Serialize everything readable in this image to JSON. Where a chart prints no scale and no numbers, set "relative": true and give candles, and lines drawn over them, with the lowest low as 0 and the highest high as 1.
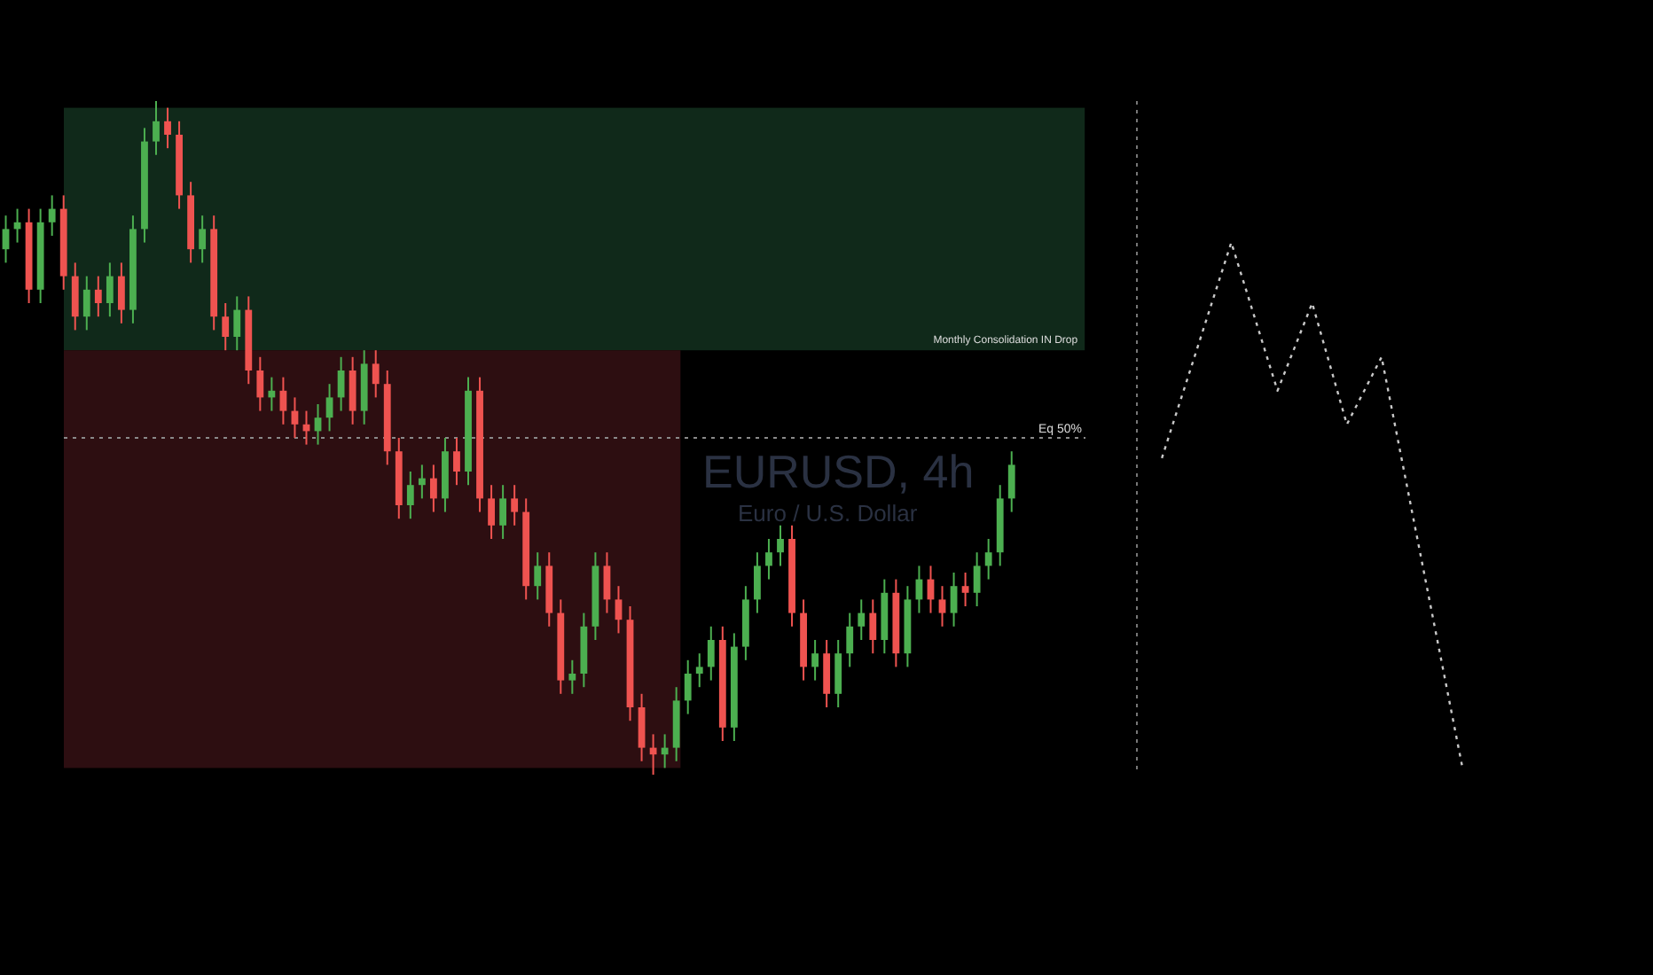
{
  "chart_data": {
    "type": "candlestick",
    "title": "EURUSD, 4h",
    "subtitle": "Euro / U.S. Dollar",
    "relative": true,
    "categories": [
      null,
      null,
      null,
      null,
      null,
      null,
      null,
      null,
      null,
      null,
      null,
      null,
      null,
      null,
      null,
      null,
      null,
      null,
      null,
      null,
      null,
      null,
      null,
      null,
      null,
      null,
      null,
      null,
      null,
      null,
      null,
      null,
      null,
      null,
      null,
      null,
      null,
      null,
      null,
      null,
      null,
      null,
      null,
      null,
      null,
      null,
      null,
      null,
      null,
      null,
      null,
      null,
      null,
      null,
      null,
      null,
      null,
      null,
      null,
      null,
      null,
      null,
      null,
      null,
      null,
      null,
      null,
      null,
      null,
      null,
      null,
      null,
      null,
      null,
      null,
      null,
      null,
      null,
      null,
      null,
      null,
      null,
      null,
      null,
      null,
      null,
      null,
      null,
      null,
      null,
      null,
      null,
      null,
      null,
      null,
      null,
      null,
      null,
      null,
      null,
      null,
      null,
      null,
      null,
      null,
      null,
      null,
      null,
      null,
      null,
      null,
      null,
      null,
      null,
      null,
      null,
      null,
      null,
      null,
      null,
      null,
      null,
      null,
      null,
      null,
      null,
      null,
      null,
      null,
      null,
      null,
      null,
      null,
      null,
      null
    ],
    "ohlc": [
      [
        0.78,
        0.83,
        0.76,
        0.81
      ],
      [
        0.81,
        0.84,
        0.79,
        0.82
      ],
      [
        0.82,
        0.84,
        0.7,
        0.72
      ],
      [
        0.72,
        0.84,
        0.7,
        0.82
      ],
      [
        0.82,
        0.86,
        0.8,
        0.84
      ],
      [
        0.84,
        0.86,
        0.72,
        0.74
      ],
      [
        0.74,
        0.76,
        0.66,
        0.68
      ],
      [
        0.68,
        0.74,
        0.66,
        0.72
      ],
      [
        0.72,
        0.74,
        0.68,
        0.7
      ],
      [
        0.7,
        0.76,
        0.68,
        0.74
      ],
      [
        0.74,
        0.76,
        0.67,
        0.69
      ],
      [
        0.69,
        0.83,
        0.67,
        0.81
      ],
      [
        0.81,
        0.96,
        0.79,
        0.94
      ],
      [
        0.94,
        1.0,
        0.92,
        0.97
      ],
      [
        0.97,
        0.99,
        0.93,
        0.95
      ],
      [
        0.95,
        0.97,
        0.84,
        0.86
      ],
      [
        0.86,
        0.88,
        0.76,
        0.78
      ],
      [
        0.78,
        0.83,
        0.76,
        0.81
      ],
      [
        0.81,
        0.83,
        0.66,
        0.68
      ],
      [
        0.68,
        0.7,
        0.63,
        0.65
      ],
      [
        0.65,
        0.71,
        0.63,
        0.69
      ],
      [
        0.69,
        0.71,
        0.58,
        0.6
      ],
      [
        0.6,
        0.62,
        0.54,
        0.56
      ],
      [
        0.56,
        0.59,
        0.54,
        0.57
      ],
      [
        0.57,
        0.59,
        0.52,
        0.54
      ],
      [
        0.54,
        0.56,
        0.5,
        0.52
      ],
      [
        0.52,
        0.54,
        0.49,
        0.51
      ],
      [
        0.51,
        0.55,
        0.49,
        0.53
      ],
      [
        0.53,
        0.58,
        0.51,
        0.56
      ],
      [
        0.56,
        0.62,
        0.54,
        0.6
      ],
      [
        0.6,
        0.62,
        0.52,
        0.54
      ],
      [
        0.54,
        0.63,
        0.52,
        0.61
      ],
      [
        0.61,
        0.63,
        0.56,
        0.58
      ],
      [
        0.58,
        0.6,
        0.46,
        0.48
      ],
      [
        0.48,
        0.5,
        0.38,
        0.4
      ],
      [
        0.4,
        0.45,
        0.38,
        0.43
      ],
      [
        0.43,
        0.46,
        0.41,
        0.44
      ],
      [
        0.44,
        0.46,
        0.39,
        0.41
      ],
      [
        0.41,
        0.5,
        0.39,
        0.48
      ],
      [
        0.48,
        0.5,
        0.43,
        0.45
      ],
      [
        0.45,
        0.59,
        0.43,
        0.57
      ],
      [
        0.57,
        0.59,
        0.39,
        0.41
      ],
      [
        0.41,
        0.43,
        0.35,
        0.37
      ],
      [
        0.37,
        0.43,
        0.35,
        0.41
      ],
      [
        0.41,
        0.43,
        0.37,
        0.39
      ],
      [
        0.39,
        0.41,
        0.26,
        0.28
      ],
      [
        0.28,
        0.33,
        0.26,
        0.31
      ],
      [
        0.31,
        0.33,
        0.22,
        0.24
      ],
      [
        0.24,
        0.26,
        0.12,
        0.14
      ],
      [
        0.14,
        0.17,
        0.12,
        0.15
      ],
      [
        0.15,
        0.24,
        0.13,
        0.22
      ],
      [
        0.22,
        0.33,
        0.2,
        0.31
      ],
      [
        0.31,
        0.33,
        0.24,
        0.26
      ],
      [
        0.26,
        0.28,
        0.21,
        0.23
      ],
      [
        0.23,
        0.25,
        0.08,
        0.1
      ],
      [
        0.1,
        0.12,
        0.02,
        0.04
      ],
      [
        0.04,
        0.06,
        0.0,
        0.03
      ],
      [
        0.03,
        0.06,
        0.01,
        0.04
      ],
      [
        0.04,
        0.13,
        0.02,
        0.11
      ],
      [
        0.11,
        0.17,
        0.09,
        0.15
      ],
      [
        0.15,
        0.18,
        0.13,
        0.16
      ],
      [
        0.16,
        0.22,
        0.14,
        0.2
      ],
      [
        0.2,
        0.22,
        0.05,
        0.07
      ],
      [
        0.07,
        0.21,
        0.05,
        0.19
      ],
      [
        0.19,
        0.28,
        0.17,
        0.26
      ],
      [
        0.26,
        0.33,
        0.24,
        0.31
      ],
      [
        0.31,
        0.35,
        0.29,
        0.33
      ],
      [
        0.33,
        0.37,
        0.31,
        0.35
      ],
      [
        0.35,
        0.37,
        0.22,
        0.24
      ],
      [
        0.24,
        0.26,
        0.14,
        0.16
      ],
      [
        0.16,
        0.2,
        0.14,
        0.18
      ],
      [
        0.18,
        0.2,
        0.1,
        0.12
      ],
      [
        0.12,
        0.2,
        0.1,
        0.18
      ],
      [
        0.18,
        0.24,
        0.16,
        0.22
      ],
      [
        0.22,
        0.26,
        0.2,
        0.24
      ],
      [
        0.24,
        0.26,
        0.18,
        0.2
      ],
      [
        0.2,
        0.29,
        0.18,
        0.27
      ],
      [
        0.27,
        0.29,
        0.16,
        0.18
      ],
      [
        0.18,
        0.28,
        0.16,
        0.26
      ],
      [
        0.26,
        0.31,
        0.24,
        0.29
      ],
      [
        0.29,
        0.31,
        0.24,
        0.26
      ],
      [
        0.26,
        0.28,
        0.22,
        0.24
      ],
      [
        0.24,
        0.3,
        0.22,
        0.28
      ],
      [
        0.28,
        0.3,
        0.25,
        0.27
      ],
      [
        0.27,
        0.33,
        0.25,
        0.31
      ],
      [
        0.31,
        0.35,
        0.29,
        0.33
      ],
      [
        0.33,
        0.43,
        0.31,
        0.41
      ],
      [
        0.41,
        0.48,
        0.39,
        0.46
      ],
      null,
      null,
      null,
      null,
      null,
      null,
      null,
      null,
      null,
      null,
      null,
      null,
      null,
      null,
      null,
      null,
      null,
      null,
      null,
      null,
      null,
      null,
      null,
      null,
      null,
      null,
      null,
      null,
      null,
      null,
      null,
      null,
      null,
      null,
      null,
      null,
      null,
      null,
      null,
      null,
      null,
      null,
      null,
      null,
      null,
      null,
      null
    ],
    "series": [
      {
        "type": "line",
        "color": "#c8c8c8",
        "line_style": "dotted",
        "values": [
          null,
          null,
          null,
          null,
          null,
          null,
          null,
          null,
          null,
          null,
          null,
          null,
          null,
          null,
          null,
          null,
          null,
          null,
          null,
          null,
          null,
          null,
          null,
          null,
          null,
          null,
          null,
          null,
          null,
          null,
          null,
          null,
          null,
          null,
          null,
          null,
          null,
          null,
          null,
          null,
          null,
          null,
          null,
          null,
          null,
          null,
          null,
          null,
          null,
          null,
          null,
          null,
          null,
          null,
          null,
          null,
          null,
          null,
          null,
          null,
          null,
          null,
          null,
          null,
          null,
          null,
          null,
          null,
          null,
          null,
          null,
          null,
          null,
          null,
          null,
          null,
          null,
          null,
          null,
          null,
          null,
          null,
          null,
          null,
          null,
          null,
          null,
          null,
          null,
          null,
          null,
          null,
          null,
          null,
          null,
          null,
          null,
          null,
          null,
          null,
          0.47,
          null,
          null,
          null,
          null,
          null,
          0.79,
          null,
          null,
          null,
          0.57,
          null,
          null,
          0.7,
          null,
          null,
          0.52,
          null,
          null,
          0.62,
          null,
          null,
          null,
          null,
          null,
          null,
          0.01,
          null,
          null,
          null,
          null,
          null,
          null,
          null,
          null
        ]
      }
    ],
    "bands": [
      {
        "axis": "y",
        "from": 0.63,
        "to": 0.99,
        "color": "#10291a",
        "label": "Monthly Consolidation IN Drop"
      },
      {
        "axis": "y",
        "from": 0.01,
        "to": 0.63,
        "color": "#2d0e11"
      }
    ],
    "ref_lines": [
      {
        "axis": "y",
        "value": 0.5,
        "label": "Eq 50%",
        "color": "#8a8a8a",
        "line_style": "dotted"
      }
    ]
  }
}
